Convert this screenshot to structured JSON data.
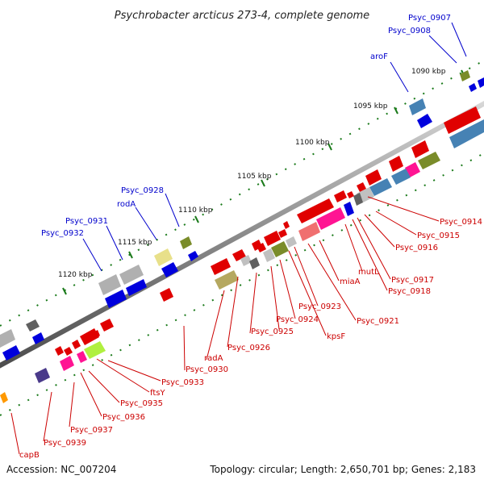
{
  "title": "Psychrobacter arcticus 273-4, complete genome",
  "footer": {
    "accession": "Accession: NC_007204",
    "topology": "Topology: circular; Length: 2,650,701 bp; Genes: 2,183"
  },
  "colors": {
    "backbone": "#808080",
    "tick": "#1a7a1a",
    "forward_label": "#0000cc",
    "reverse_label": "#cc0000"
  },
  "ticks": [
    "1090 kbp",
    "1095 kbp",
    "1100 kbp",
    "1105 kbp",
    "1110 kbp",
    "1115 kbp",
    "1120 kbp"
  ],
  "forward_labels": [
    "Psyc_0907",
    "Psyc_0908",
    "aroF",
    "Psyc_0928",
    "rodA",
    "Psyc_0931",
    "Psyc_0932"
  ],
  "reverse_labels": [
    "Psyc_0914",
    "Psyc_0915",
    "Psyc_0916",
    "mutL",
    "Psyc_0917",
    "Psyc_0918",
    "miaA",
    "Psyc_0921",
    "Psyc_0923",
    "kpsF",
    "Psyc_0924",
    "Psyc_0925",
    "Psyc_0926",
    "radA",
    "Psyc_0930",
    "Psyc_0933",
    "ftsY",
    "Psyc_0935",
    "Psyc_0936",
    "Psyc_0937",
    "Psyc_0939",
    "capB"
  ]
}
